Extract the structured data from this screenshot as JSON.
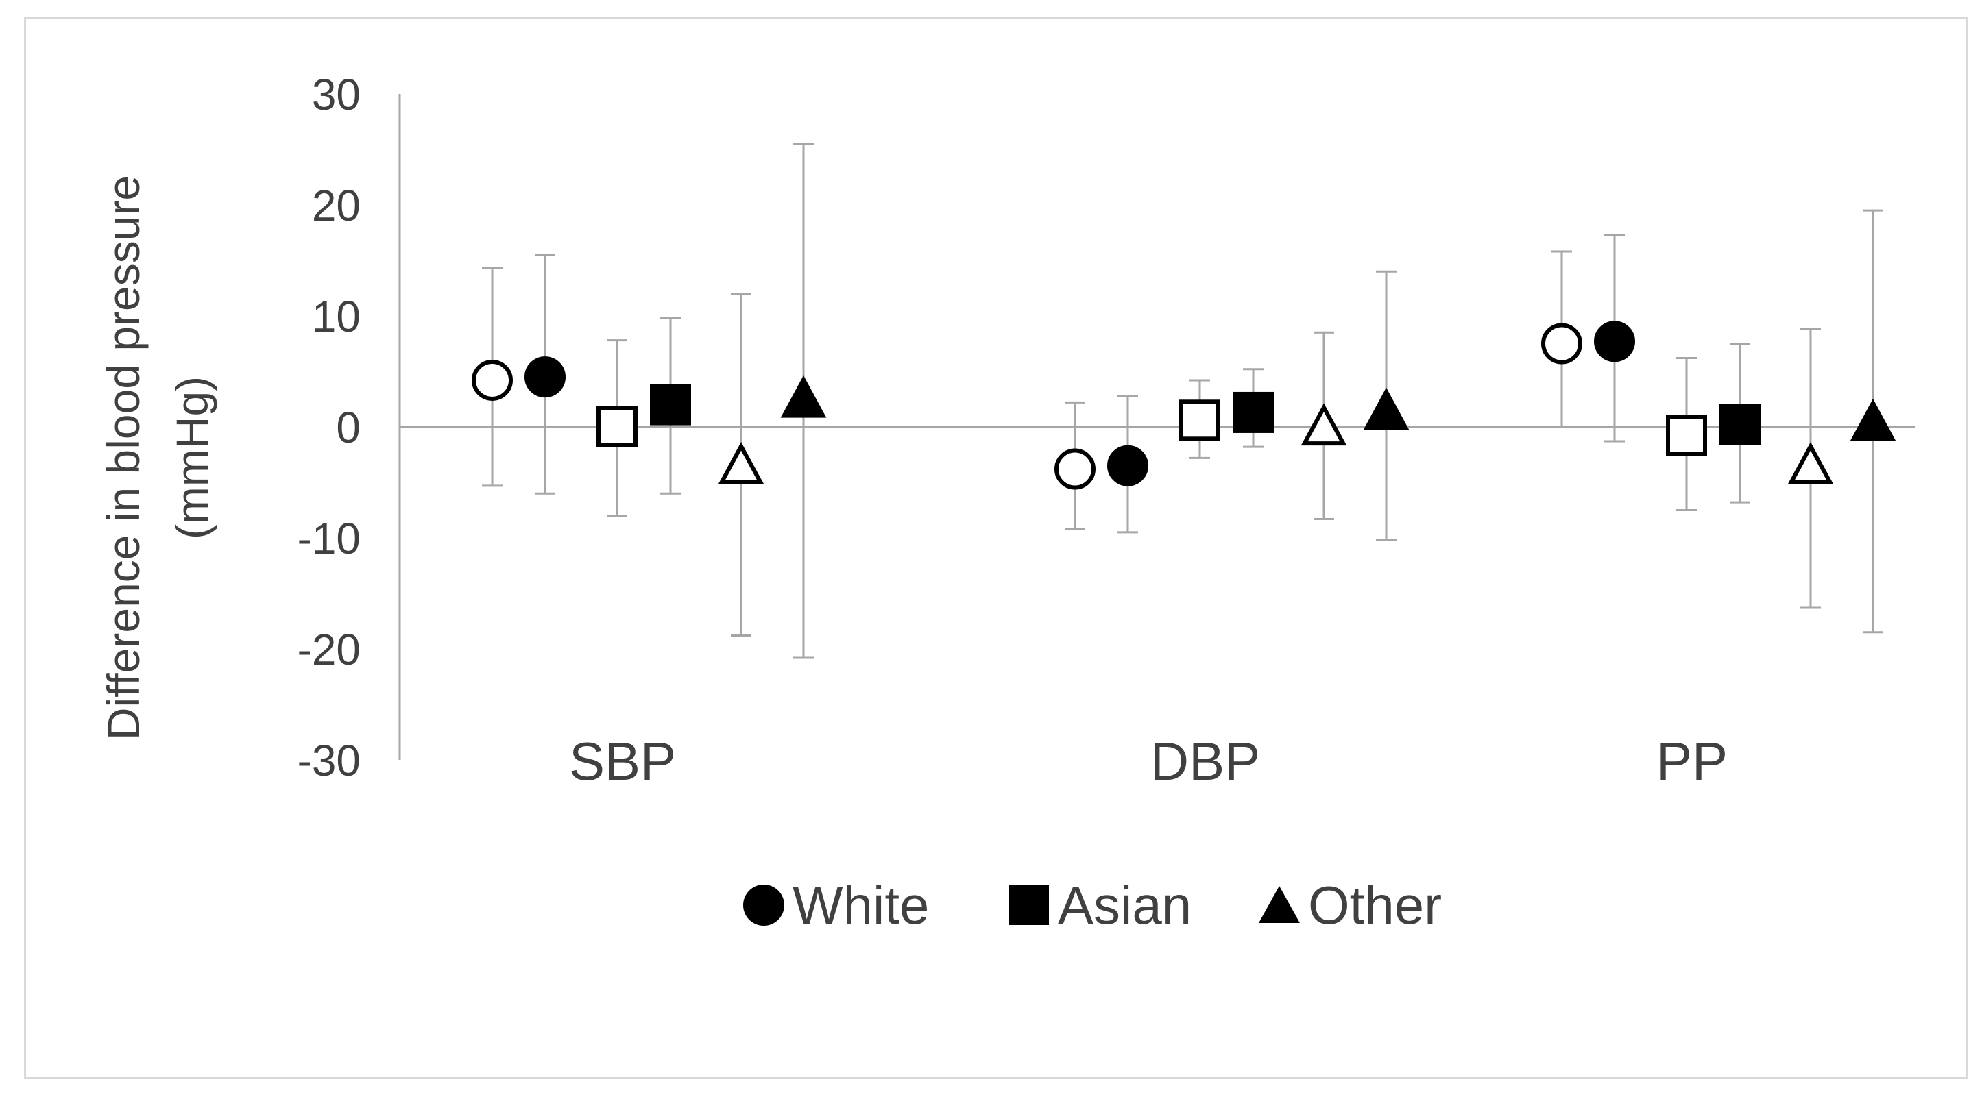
{
  "chart_data": {
    "type": "scatter",
    "ylabel": [
      "Difference in blood pressure",
      "(mmHg)"
    ],
    "ylim": [
      -30,
      30
    ],
    "yticks": [
      30,
      20,
      10,
      0,
      -10,
      -20,
      -30
    ],
    "categories": [
      "SBP",
      "DBP",
      "PP"
    ],
    "grid": false,
    "legend_position": "bottom",
    "legend": [
      {
        "label": "White",
        "marker": "circle"
      },
      {
        "label": "Asian",
        "marker": "square"
      },
      {
        "label": "Other",
        "marker": "triangle"
      }
    ],
    "series": [
      {
        "group": "White",
        "marker": "circle",
        "filled": false,
        "points": [
          {
            "category": "SBP",
            "y": 4.2,
            "lower": -5.3,
            "upper": 14.3
          },
          {
            "category": "DBP",
            "y": -3.8,
            "lower": -9.2,
            "upper": 2.2
          },
          {
            "category": "PP",
            "y": 7.5,
            "lower": 0.0,
            "upper": 15.8
          }
        ]
      },
      {
        "group": "White",
        "marker": "circle",
        "filled": true,
        "points": [
          {
            "category": "SBP",
            "y": 4.5,
            "lower": -6.0,
            "upper": 15.5
          },
          {
            "category": "DBP",
            "y": -3.5,
            "lower": -9.5,
            "upper": 2.8
          },
          {
            "category": "PP",
            "y": 7.7,
            "lower": -1.3,
            "upper": 17.3
          }
        ]
      },
      {
        "group": "Asian",
        "marker": "square",
        "filled": false,
        "points": [
          {
            "category": "SBP",
            "y": 0.0,
            "lower": -8.0,
            "upper": 7.8
          },
          {
            "category": "DBP",
            "y": 0.6,
            "lower": -2.8,
            "upper": 4.2
          },
          {
            "category": "PP",
            "y": -0.8,
            "lower": -7.5,
            "upper": 6.2
          }
        ]
      },
      {
        "group": "Asian",
        "marker": "square",
        "filled": true,
        "points": [
          {
            "category": "SBP",
            "y": 2.0,
            "lower": -6.0,
            "upper": 9.8
          },
          {
            "category": "DBP",
            "y": 1.3,
            "lower": -1.8,
            "upper": 5.2
          },
          {
            "category": "PP",
            "y": 0.2,
            "lower": -6.8,
            "upper": 7.5
          }
        ]
      },
      {
        "group": "Other",
        "marker": "triangle",
        "filled": false,
        "points": [
          {
            "category": "SBP",
            "y": -3.5,
            "lower": -18.8,
            "upper": 12.0
          },
          {
            "category": "DBP",
            "y": 0.0,
            "lower": -8.3,
            "upper": 8.5
          },
          {
            "category": "PP",
            "y": -3.5,
            "lower": -16.3,
            "upper": 8.8
          }
        ]
      },
      {
        "group": "Other",
        "marker": "triangle",
        "filled": true,
        "points": [
          {
            "category": "SBP",
            "y": 2.5,
            "lower": -20.8,
            "upper": 25.5
          },
          {
            "category": "DBP",
            "y": 1.4,
            "lower": -10.2,
            "upper": 14.0
          },
          {
            "category": "PP",
            "y": 0.4,
            "lower": -18.5,
            "upper": 19.5
          }
        ]
      }
    ]
  }
}
